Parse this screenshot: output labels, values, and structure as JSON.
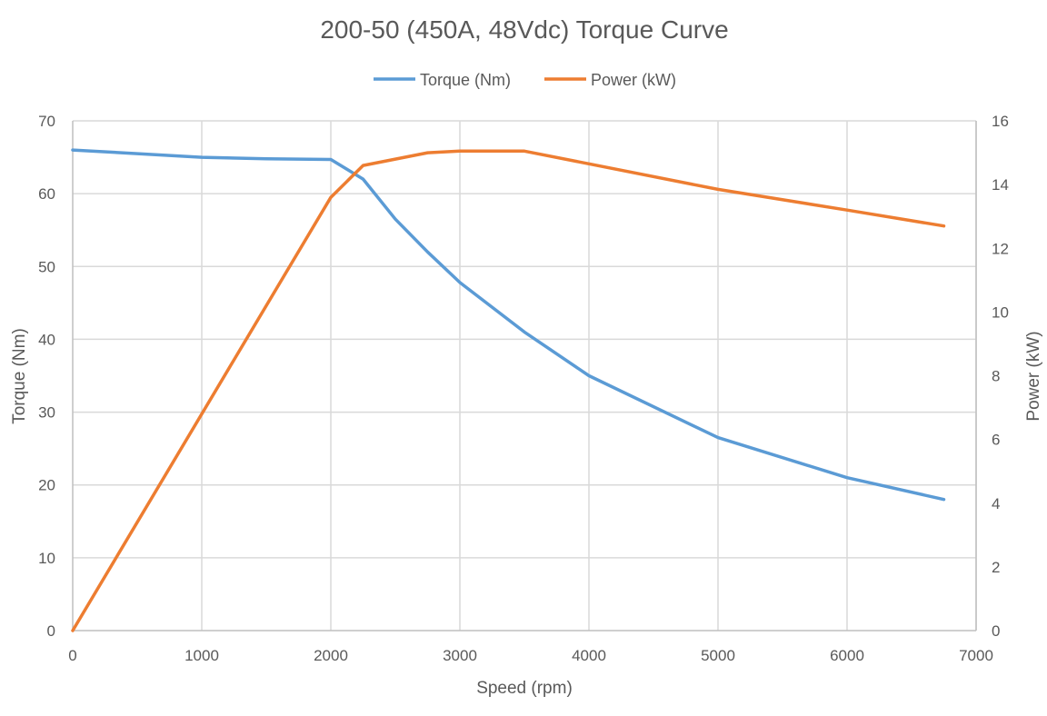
{
  "chart_data": {
    "type": "line",
    "title": "200-50 (450A, 48Vdc) Torque Curve",
    "xlabel": "Speed (rpm)",
    "ylabel": "Torque (Nm)",
    "y2label": "Power (kW)",
    "xlim": [
      0,
      7000
    ],
    "ylim": [
      0,
      70
    ],
    "y2lim": [
      0,
      16
    ],
    "x_ticks": [
      0,
      1000,
      2000,
      3000,
      4000,
      5000,
      6000,
      7000
    ],
    "y_ticks": [
      0,
      10,
      20,
      30,
      40,
      50,
      60,
      70
    ],
    "y2_ticks": [
      0,
      2,
      4,
      6,
      8,
      10,
      12,
      14,
      16
    ],
    "grid": true,
    "legend_position": "top-center",
    "series": [
      {
        "name": "Torque (Nm)",
        "axis": "left",
        "color": "#5b9bd5",
        "x": [
          0,
          1000,
          1500,
          2000,
          2250,
          2500,
          2750,
          3000,
          3500,
          4000,
          5000,
          6000,
          6750
        ],
        "values": [
          66,
          65,
          64.8,
          64.7,
          62,
          56.5,
          52,
          47.8,
          41,
          35,
          26.5,
          21,
          18
        ]
      },
      {
        "name": "Power (kW)",
        "axis": "right",
        "color": "#ed7d31",
        "x": [
          0,
          2000,
          2250,
          2750,
          3000,
          3500,
          4000,
          5000,
          6000,
          6750
        ],
        "values": [
          0,
          13.6,
          14.6,
          15.0,
          15.05,
          15.05,
          14.65,
          13.85,
          13.2,
          12.7
        ]
      }
    ]
  }
}
